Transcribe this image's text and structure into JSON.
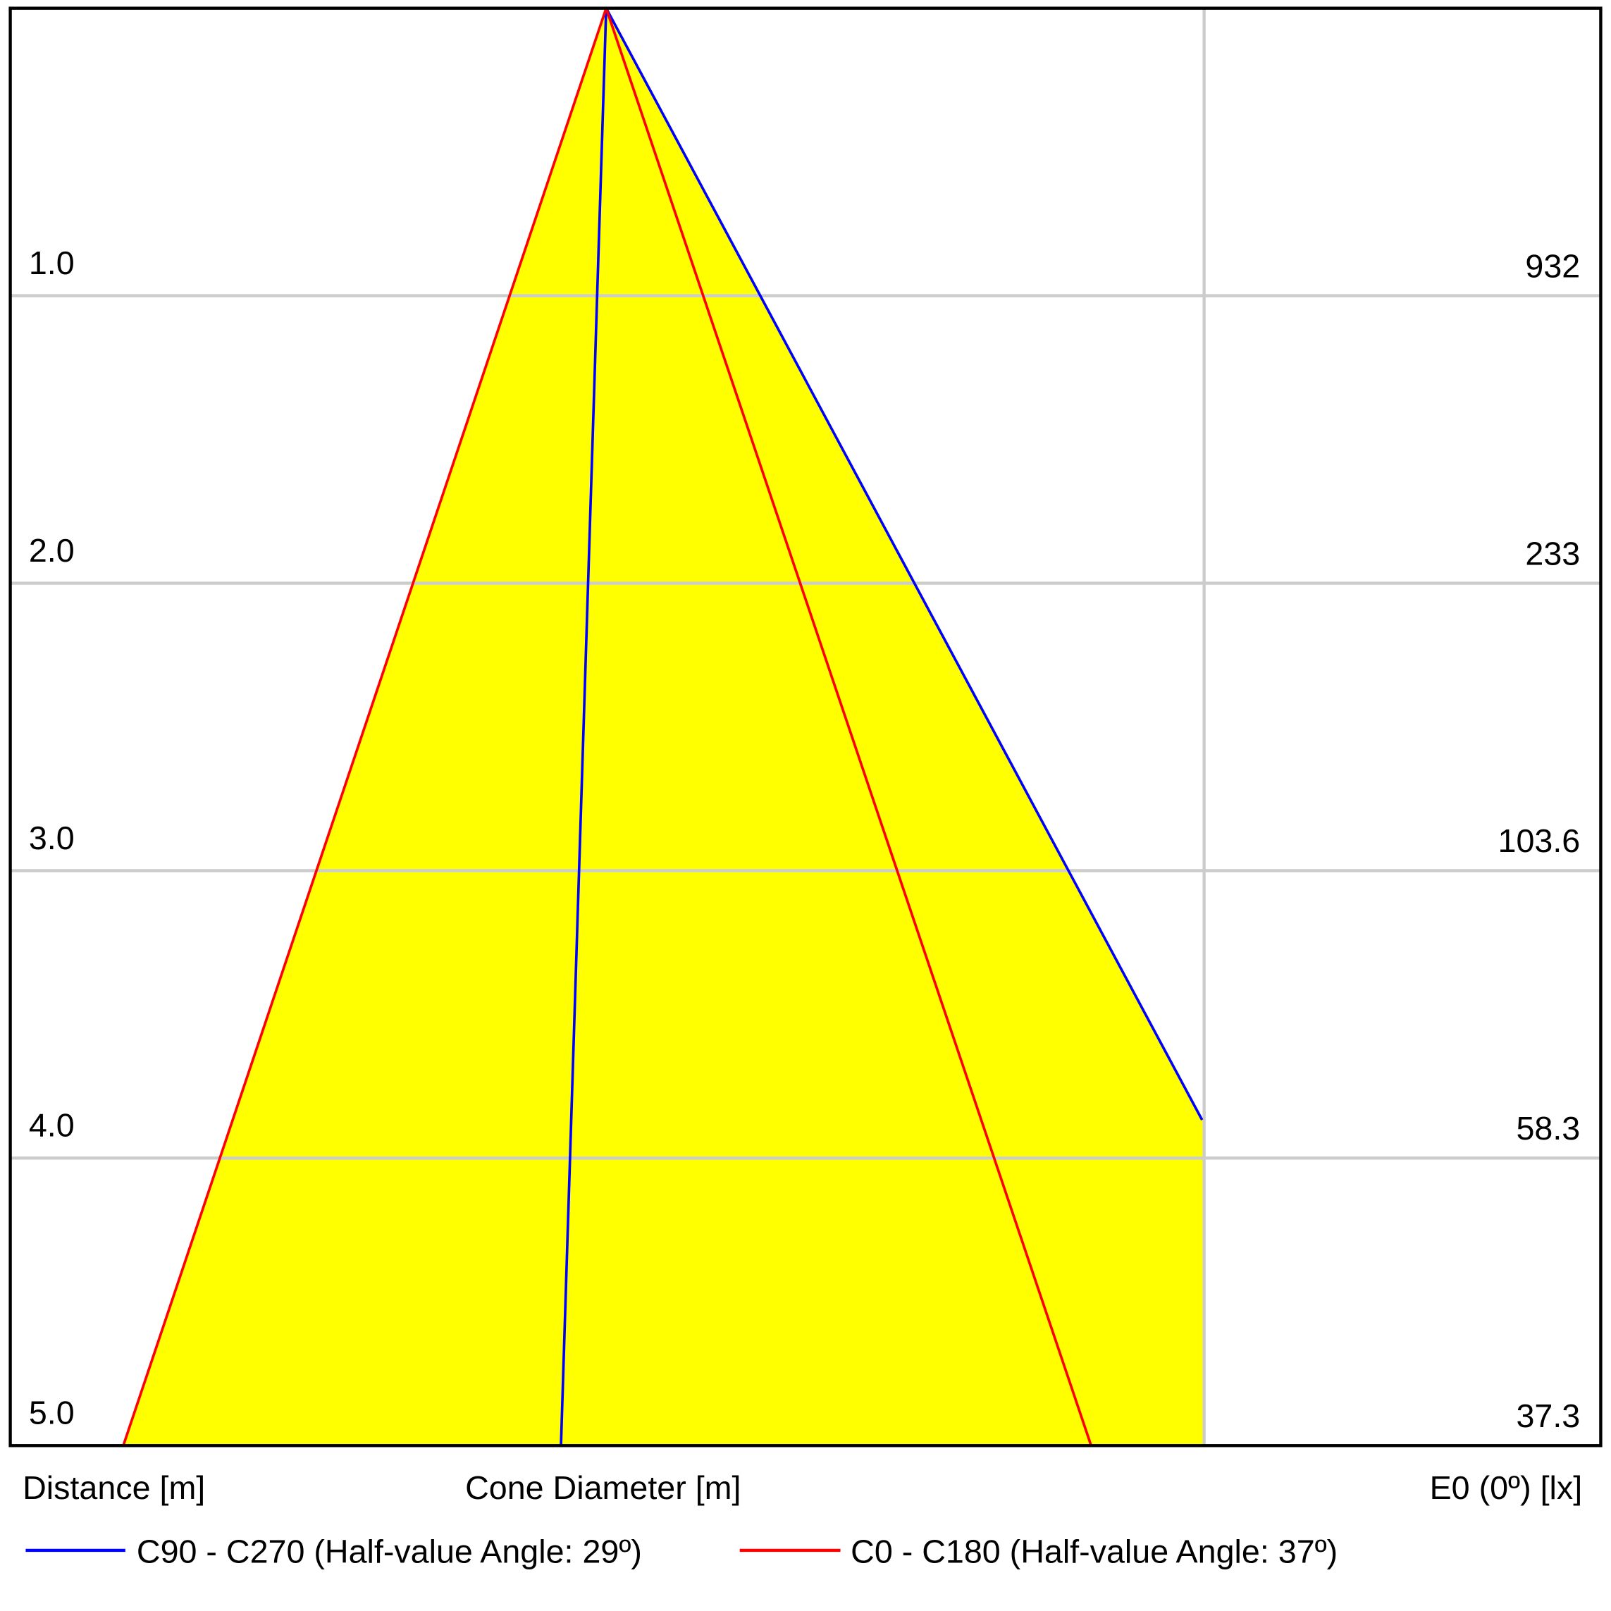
{
  "chart_data": {
    "type": "cone",
    "axis_labels": [
      "Distance [m]",
      "Cone Diameter [m]",
      "E0 (0º) [lx]"
    ],
    "yticks": [
      {
        "value": 1,
        "label": "1.0"
      },
      {
        "value": 2,
        "label": "2.0"
      },
      {
        "value": 3,
        "label": "3.0"
      },
      {
        "value": 4,
        "label": "4.0"
      },
      {
        "value": 5,
        "label": "5.0"
      }
    ],
    "ylim": [
      0,
      5
    ],
    "illuminance": [
      932,
      233,
      103.6,
      58.3,
      37.3
    ],
    "series": [
      {
        "name": "C90 - C270 (Half-value Angle: 29º)",
        "color": "#0000ff"
      },
      {
        "name": "C0 - C180 (Half-value Angle: 37º)",
        "color": "#ff0000"
      }
    ],
    "fill": "#ffff00",
    "grid": true
  }
}
